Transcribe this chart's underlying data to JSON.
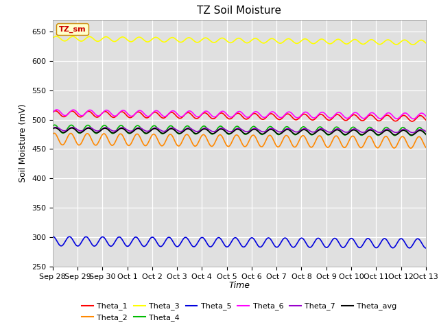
{
  "title": "TZ Soil Moisture",
  "xlabel": "Time",
  "ylabel": "Soil Moisture (mV)",
  "ylim": [
    250,
    670
  ],
  "yticks": [
    250,
    300,
    350,
    400,
    450,
    500,
    550,
    600,
    650
  ],
  "background_color": "#e0e0e0",
  "legend_label": "TZ_sm",
  "series": [
    {
      "name": "Theta_1",
      "color": "#ff0000",
      "base": 510,
      "trend": -0.55,
      "amp": 5,
      "freq": 1.5,
      "phase": 0.5
    },
    {
      "name": "Theta_2",
      "color": "#ff8800",
      "base": 467,
      "trend": -0.4,
      "amp": 10,
      "freq": 1.5,
      "phase": 1.0
    },
    {
      "name": "Theta_3",
      "color": "#ffff00",
      "base": 638,
      "trend": -0.45,
      "amp": 4,
      "freq": 1.5,
      "phase": 0.2
    },
    {
      "name": "Theta_4",
      "color": "#00bb00",
      "base": 484,
      "trend": -0.3,
      "amp": 7,
      "freq": 1.5,
      "phase": 0.8
    },
    {
      "name": "Theta_5",
      "color": "#0000dd",
      "base": 293,
      "trend": -0.25,
      "amp": 8,
      "freq": 1.5,
      "phase": 1.5
    },
    {
      "name": "Theta_6",
      "color": "#ff00ff",
      "base": 512,
      "trend": -0.4,
      "amp": 5,
      "freq": 1.5,
      "phase": 0.0
    },
    {
      "name": "Theta_7",
      "color": "#9900cc",
      "base": 484,
      "trend": -0.22,
      "amp": 3,
      "freq": 1.5,
      "phase": 0.3
    },
    {
      "name": "Theta_avg",
      "color": "#000000",
      "base": 482,
      "trend": -0.3,
      "amp": 4,
      "freq": 1.5,
      "phase": 0.6
    }
  ],
  "n_points": 384,
  "tick_labels": [
    "Sep 28",
    "Sep 29",
    "Sep 30",
    "Oct 1",
    "Oct 2",
    "Oct 3",
    "Oct 4",
    "Oct 5",
    "Oct 6",
    "Oct 7",
    "Oct 8",
    "Oct 9",
    "Oct 10",
    "Oct 11",
    "Oct 12",
    "Oct 13"
  ],
  "tick_positions": [
    0,
    24,
    48,
    72,
    96,
    120,
    144,
    168,
    192,
    216,
    240,
    264,
    288,
    312,
    336,
    360
  ]
}
